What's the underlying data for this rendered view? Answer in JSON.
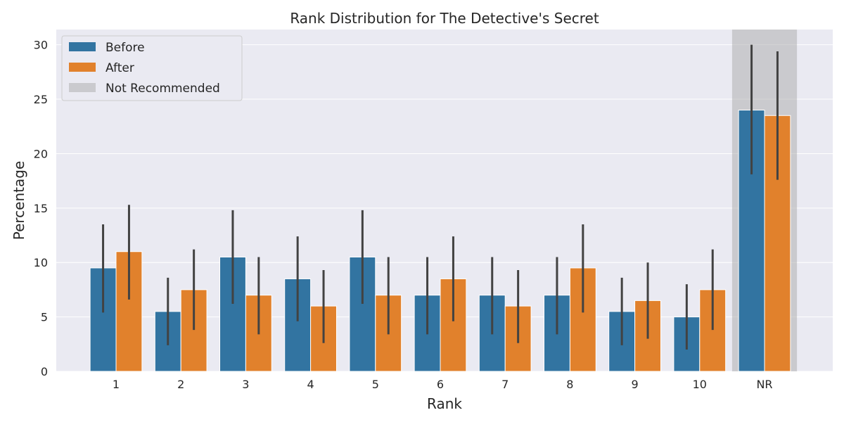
{
  "chart_data": {
    "type": "bar",
    "title": "Rank Distribution for The Detective's Secret",
    "xlabel": "Rank",
    "ylabel": "Percentage",
    "categories": [
      "1",
      "2",
      "3",
      "4",
      "5",
      "6",
      "7",
      "8",
      "9",
      "10",
      "NR"
    ],
    "ylim": [
      0,
      31.4
    ],
    "yticks": [
      0,
      5,
      10,
      15,
      20,
      25,
      30
    ],
    "grid": true,
    "legend_placement": "top-left",
    "series": [
      {
        "name": "Before",
        "color": "#3274a1",
        "values": [
          9.5,
          5.5,
          10.5,
          8.5,
          10.5,
          7.0,
          7.0,
          7.0,
          5.5,
          5.0,
          24.0
        ],
        "error_low": [
          5.4,
          2.4,
          6.2,
          4.6,
          6.2,
          3.4,
          3.4,
          3.4,
          2.4,
          2.0,
          18.1
        ],
        "error_high": [
          13.5,
          8.6,
          14.8,
          12.4,
          14.8,
          10.5,
          10.5,
          10.5,
          8.6,
          8.0,
          30.0
        ]
      },
      {
        "name": "After",
        "color": "#e1812c",
        "values": [
          11.0,
          7.5,
          7.0,
          6.0,
          7.0,
          8.5,
          6.0,
          9.5,
          6.5,
          7.5,
          23.5
        ],
        "error_low": [
          6.6,
          3.8,
          3.4,
          2.6,
          3.4,
          4.6,
          2.6,
          5.4,
          3.0,
          3.8,
          17.6
        ],
        "error_high": [
          15.3,
          11.2,
          10.5,
          9.3,
          10.5,
          12.4,
          9.3,
          13.5,
          10.0,
          11.2,
          29.4
        ]
      }
    ],
    "highlight": {
      "label": "Not Recommended",
      "category": "NR",
      "color": "#a9a9a9"
    }
  }
}
